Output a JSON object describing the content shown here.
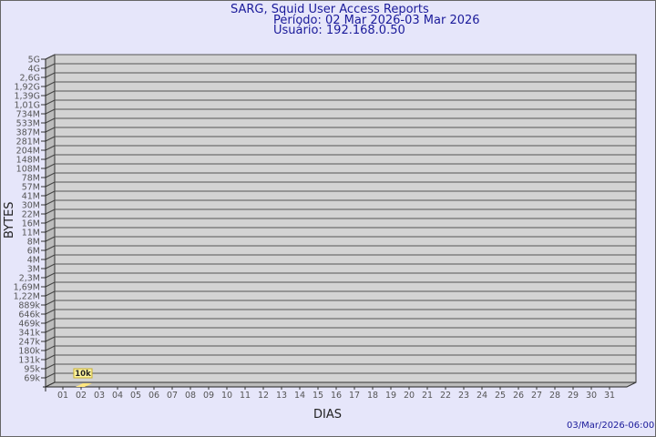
{
  "header": {
    "title": "SARG, Squid User Access Reports",
    "period": "Período: 02 Mar 2026-03 Mar 2026",
    "user": "Usuário: 192.168.0.50"
  },
  "footer": {
    "timestamp": "03/Mar/2026-06:00"
  },
  "chart_data": {
    "type": "bar",
    "title": "SARG, Squid User Access Reports",
    "xlabel": "DIAS",
    "ylabel": "BYTES",
    "y_scale": "log",
    "y_ticks": [
      "5G",
      "4G",
      "2,6G",
      "1,92G",
      "1,39G",
      "1,01G",
      "734M",
      "533M",
      "387M",
      "281M",
      "204M",
      "148M",
      "108M",
      "78M",
      "57M",
      "41M",
      "30M",
      "22M",
      "16M",
      "11M",
      "8M",
      "6M",
      "4M",
      "3M",
      "2,3M",
      "1,69M",
      "1,22M",
      "889k",
      "646k",
      "469k",
      "341k",
      "247k",
      "180k",
      "131k",
      "95k",
      "69k"
    ],
    "categories": [
      "01",
      "02",
      "03",
      "04",
      "05",
      "06",
      "07",
      "08",
      "09",
      "10",
      "11",
      "12",
      "13",
      "14",
      "15",
      "16",
      "17",
      "18",
      "19",
      "20",
      "21",
      "22",
      "23",
      "24",
      "25",
      "26",
      "27",
      "28",
      "29",
      "30",
      "31"
    ],
    "values": [
      null,
      10000,
      null,
      null,
      null,
      null,
      null,
      null,
      null,
      null,
      null,
      null,
      null,
      null,
      null,
      null,
      null,
      null,
      null,
      null,
      null,
      null,
      null,
      null,
      null,
      null,
      null,
      null,
      null,
      null,
      null
    ],
    "data_labels": {
      "02": "10k"
    },
    "grid": true,
    "colors": {
      "background": "#e6e6fa",
      "plot": "#d3d3d3",
      "side": "#bcbcbc",
      "bar": "#ffe680",
      "text": "#1a1a9a",
      "tick_text": "#555555"
    }
  }
}
